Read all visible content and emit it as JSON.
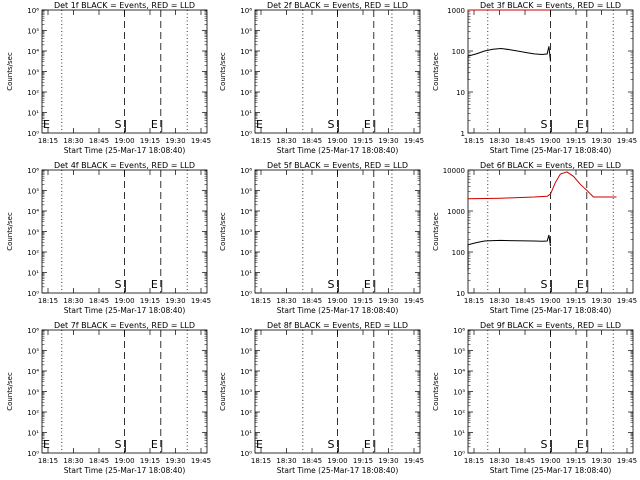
{
  "panels": [
    {
      "title": "Det 1f BLACK = Events, RED = LLD",
      "axis": "log",
      "ymin": 1,
      "ymax": 1000000,
      "yticks": [
        "10⁰",
        "10¹",
        "10²",
        "10³",
        "10⁴",
        "10⁵",
        "10⁶"
      ],
      "ylabel": "Counts/sec",
      "markers": [
        {
          "label": "E",
          "x": 0.0
        },
        {
          "label": "S",
          "x": 0.5
        },
        {
          "label": "E",
          "x": 0.72
        }
      ],
      "dotted": [
        0.12,
        0.88
      ],
      "series": []
    },
    {
      "title": "Det 2f BLACK = Events, RED = LLD",
      "axis": "log",
      "ymin": 1,
      "ymax": 1000000,
      "yticks": [
        "10⁰",
        "10¹",
        "10²",
        "10³",
        "10⁴",
        "10⁵",
        "10⁶"
      ],
      "ylabel": "Counts/sec",
      "markers": [
        {
          "label": "E",
          "x": 0.0
        },
        {
          "label": "S",
          "x": 0.5
        },
        {
          "label": "E",
          "x": 0.72
        }
      ],
      "dotted": [
        0.29,
        0.83
      ],
      "series": []
    },
    {
      "title": "Det 3f BLACK = Events, RED = LLD",
      "axis": "log",
      "ymin": 1,
      "ymax": 1000,
      "yticks": [
        "1",
        "10",
        "100",
        "1000"
      ],
      "ylabel": "Counts/sec",
      "markers": [
        {
          "label": "S",
          "x": 0.5
        },
        {
          "label": "E",
          "x": 0.72
        }
      ],
      "dotted": [
        0.12,
        0.88
      ],
      "series": [
        {
          "color": "#cc0000",
          "points": [
            [
              0.0,
              1000
            ],
            [
              0.5,
              1000
            ]
          ]
        },
        {
          "color": "#000000",
          "points": [
            [
              0.0,
              20
            ],
            [
              0.0,
              75
            ],
            [
              0.05,
              85
            ],
            [
              0.1,
              100
            ],
            [
              0.15,
              110
            ],
            [
              0.2,
              115
            ],
            [
              0.25,
              108
            ],
            [
              0.3,
              100
            ],
            [
              0.35,
              92
            ],
            [
              0.4,
              85
            ],
            [
              0.45,
              82
            ],
            [
              0.48,
              85
            ],
            [
              0.49,
              130
            ],
            [
              0.5,
              55
            ]
          ]
        }
      ]
    },
    {
      "title": "Det 4f BLACK = Events, RED = LLD",
      "axis": "log",
      "ymin": 1,
      "ymax": 1000000,
      "yticks": [
        "10⁰",
        "10¹",
        "10²",
        "10³",
        "10⁴",
        "10⁵",
        "10⁶"
      ],
      "ylabel": "Counts/sec",
      "markers": [
        {
          "label": "S",
          "x": 0.5
        },
        {
          "label": "E",
          "x": 0.72
        }
      ],
      "dotted": [
        0.12,
        0.88
      ],
      "series": []
    },
    {
      "title": "Det 5f BLACK = Events, RED = LLD",
      "axis": "log",
      "ymin": 1,
      "ymax": 1000000,
      "yticks": [
        "10⁰",
        "10¹",
        "10²",
        "10³",
        "10⁴",
        "10⁵",
        "10⁶"
      ],
      "ylabel": "Counts/sec",
      "markers": [
        {
          "label": "S",
          "x": 0.5
        },
        {
          "label": "E",
          "x": 0.72
        }
      ],
      "dotted": [
        0.29,
        0.83
      ],
      "series": []
    },
    {
      "title": "Det 6f BLACK = Events, RED = LLD",
      "axis": "log",
      "ymin": 10,
      "ymax": 10000,
      "yticks": [
        "10",
        "100",
        "1000",
        "10000"
      ],
      "ylabel": "Counts/sec",
      "markers": [
        {
          "label": "S",
          "x": 0.5
        },
        {
          "label": "E",
          "x": 0.72
        }
      ],
      "dotted": [
        0.12,
        0.88
      ],
      "series": [
        {
          "color": "#cc0000",
          "points": [
            [
              0.0,
              2000
            ],
            [
              0.2,
              2050
            ],
            [
              0.4,
              2200
            ],
            [
              0.48,
              2300
            ],
            [
              0.5,
              2600
            ],
            [
              0.53,
              5000
            ],
            [
              0.56,
              8000
            ],
            [
              0.6,
              9000
            ],
            [
              0.64,
              7000
            ],
            [
              0.68,
              4500
            ],
            [
              0.72,
              3200
            ],
            [
              0.76,
              2200
            ],
            [
              0.9,
              2200
            ]
          ]
        },
        {
          "color": "#000000",
          "points": [
            [
              0.0,
              35
            ],
            [
              0.0,
              150
            ],
            [
              0.05,
              170
            ],
            [
              0.1,
              185
            ],
            [
              0.15,
              190
            ],
            [
              0.2,
              192
            ],
            [
              0.25,
              190
            ],
            [
              0.3,
              188
            ],
            [
              0.35,
              186
            ],
            [
              0.4,
              185
            ],
            [
              0.45,
              183
            ],
            [
              0.48,
              185
            ],
            [
              0.49,
              260
            ],
            [
              0.5,
              140
            ]
          ]
        }
      ]
    },
    {
      "title": "Det 7f BLACK = Events, RED = LLD",
      "axis": "log",
      "ymin": 1,
      "ymax": 1000000,
      "yticks": [
        "10⁰",
        "10¹",
        "10²",
        "10³",
        "10⁴",
        "10⁵",
        "10⁶"
      ],
      "ylabel": "Counts/sec",
      "markers": [
        {
          "label": "E",
          "x": 0.0
        },
        {
          "label": "S",
          "x": 0.5
        },
        {
          "label": "E",
          "x": 0.72
        }
      ],
      "dotted": [
        0.12,
        0.88
      ],
      "series": []
    },
    {
      "title": "Det 8f BLACK = Events, RED = LLD",
      "axis": "log",
      "ymin": 1,
      "ymax": 1000000,
      "yticks": [
        "10⁰",
        "10¹",
        "10²",
        "10³",
        "10⁴",
        "10⁵",
        "10⁶"
      ],
      "ylabel": "Counts/sec",
      "markers": [
        {
          "label": "E",
          "x": 0.0
        },
        {
          "label": "S",
          "x": 0.5
        },
        {
          "label": "E",
          "x": 0.72
        }
      ],
      "dotted": [
        0.29,
        0.83
      ],
      "series": []
    },
    {
      "title": "Det 9f BLACK = Events, RED = LLD",
      "axis": "log",
      "ymin": 1,
      "ymax": 1000000,
      "yticks": [
        "10⁰",
        "10¹",
        "10²",
        "10³",
        "10⁴",
        "10⁵",
        "10⁶"
      ],
      "ylabel": "Counts/sec",
      "markers": [
        {
          "label": "S",
          "x": 0.5
        },
        {
          "label": "E",
          "x": 0.72
        }
      ],
      "dotted": [
        0.12,
        0.88
      ],
      "series": []
    }
  ],
  "xticks": [
    "18:15",
    "18:30",
    "18:45",
    "19:00",
    "19:15",
    "19:30",
    "19:45"
  ],
  "xlabel": "Start Time (25-Mar-17 18:08:40)"
}
